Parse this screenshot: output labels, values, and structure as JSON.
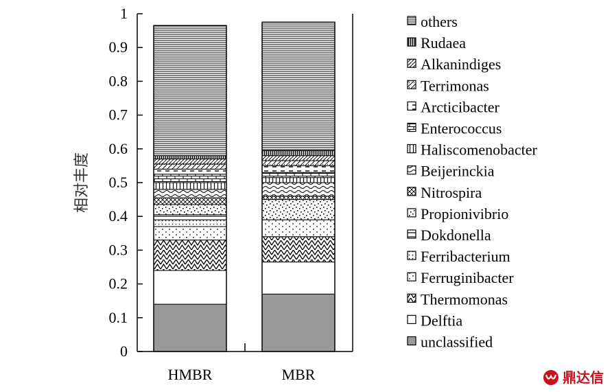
{
  "chart_data": {
    "type": "bar",
    "stacked": true,
    "categories": [
      "HMBR",
      "MBR"
    ],
    "ylabel": "相对丰度",
    "xlabel": "",
    "ylim": [
      0,
      1
    ],
    "yticks": [
      "0",
      "0.1",
      "0.2",
      "0.3",
      "0.4",
      "0.5",
      "0.6",
      "0.7",
      "0.8",
      "0.9",
      "1"
    ],
    "legend_position": "right",
    "series": [
      {
        "name": "unclassified",
        "values": [
          0.14,
          0.17
        ],
        "fill": "#999999",
        "pattern": "solid"
      },
      {
        "name": "Delftia",
        "values": [
          0.1,
          0.095
        ],
        "fill": "#ffffff",
        "pattern": "blank"
      },
      {
        "name": "Thermomonas",
        "values": [
          0.09,
          0.075
        ],
        "fill": "#ffffff",
        "pattern": "zigzag"
      },
      {
        "name": "Ferruginibacter",
        "values": [
          0.04,
          0.05
        ],
        "fill": "#ffffff",
        "pattern": "dots"
      },
      {
        "name": "Ferribacterium",
        "values": [
          0.02,
          0.0
        ],
        "fill": "#ffffff",
        "pattern": "smalldots"
      },
      {
        "name": "Dokdonella",
        "values": [
          0.015,
          0.0
        ],
        "fill": "#ffffff",
        "pattern": "hline"
      },
      {
        "name": "Propionivibrio",
        "values": [
          0.03,
          0.06
        ],
        "fill": "#ffffff",
        "pattern": "confetti"
      },
      {
        "name": "Nitrospira",
        "values": [
          0.02,
          0.01
        ],
        "fill": "#ffffff",
        "pattern": "crosshatch"
      },
      {
        "name": "Beijerinckia",
        "values": [
          0.025,
          0.04
        ],
        "fill": "#ffffff",
        "pattern": "wave"
      },
      {
        "name": "Haliscomenobacter",
        "values": [
          0.02,
          0.015
        ],
        "fill": "#ffffff",
        "pattern": "vline"
      },
      {
        "name": "Enterococcus",
        "values": [
          0.025,
          0.015
        ],
        "fill": "#ffffff",
        "pattern": "brick"
      },
      {
        "name": "Arcticibacter",
        "values": [
          0.015,
          0.02
        ],
        "fill": "#ffffff",
        "pattern": "dash"
      },
      {
        "name": "Terrimonas",
        "values": [
          0.015,
          0.015
        ],
        "fill": "#ffffff",
        "pattern": "diagcross"
      },
      {
        "name": "Alkanindiges",
        "values": [
          0.015,
          0.015
        ],
        "fill": "#ffffff",
        "pattern": "diag"
      },
      {
        "name": "Rudaea",
        "values": [
          0.01,
          0.015
        ],
        "fill": "#ffffff",
        "pattern": "vgrid"
      },
      {
        "name": "others",
        "values": [
          0.385,
          0.38
        ],
        "fill": "#ffffff",
        "pattern": "hlines"
      }
    ],
    "legend_order": [
      "others",
      "Rudaea",
      "Alkanindiges",
      "Terrimonas",
      "Arcticibacter",
      "Enterococcus",
      "Haliscomenobacter",
      "Beijerinckia",
      "Nitrospira",
      "Propionivibrio",
      "Dokdonella",
      "Ferribacterium",
      "Ferruginibacter",
      "Thermomonas",
      "Delftia",
      "unclassified"
    ]
  },
  "watermark": {
    "text": "鼎达信",
    "color": "#c8101e"
  }
}
